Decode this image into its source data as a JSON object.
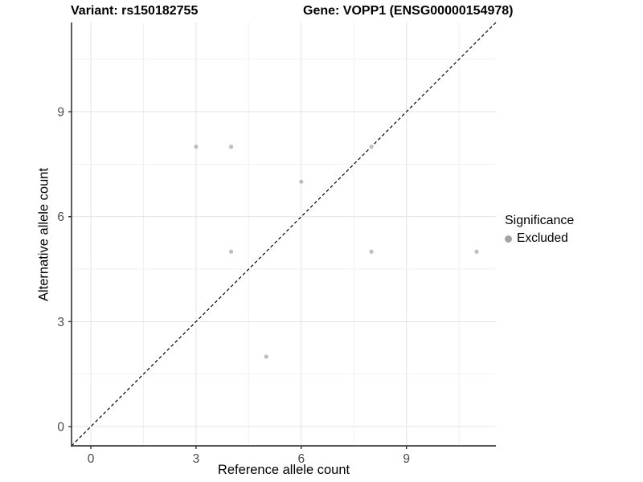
{
  "header": {
    "title_left": "Variant: rs150182755",
    "title_right": "Gene: VOPP1 (ENSG00000154978)"
  },
  "legend": {
    "title": "Significance",
    "items": [
      {
        "label": "Excluded",
        "color": "#a3a3a3"
      }
    ]
  },
  "chart_data": {
    "type": "scatter",
    "title": "Variant: rs150182755   Gene: VOPP1 (ENSG00000154978)",
    "xlabel": "Reference allele count",
    "ylabel": "Alternative allele count",
    "xlim": [
      -0.55,
      11.55
    ],
    "ylim": [
      -0.55,
      11.55
    ],
    "x_ticks": [
      0,
      3,
      6,
      9
    ],
    "y_ticks": [
      0,
      3,
      6,
      9
    ],
    "x_minor_ticks": [
      1.5,
      4.5,
      7.5,
      10.5
    ],
    "y_minor_ticks": [
      1.5,
      4.5,
      7.5,
      10.5
    ],
    "grid": true,
    "legend_position": "right",
    "series": [
      {
        "name": "Excluded",
        "color": "#bebebe",
        "points": [
          [
            3,
            8
          ],
          [
            4,
            8
          ],
          [
            8,
            8
          ],
          [
            6,
            7
          ],
          [
            4,
            5
          ],
          [
            8,
            5
          ],
          [
            11,
            5
          ],
          [
            5,
            2
          ]
        ]
      }
    ],
    "reference_line": {
      "slope": 1,
      "intercept": 0,
      "style": "dashed",
      "color": "#000000"
    }
  },
  "style_colors": {
    "grid_major": "#e3e3e3",
    "grid_minor": "#f1f1f1",
    "axis_line": "#404040",
    "tick_mark": "#333333",
    "tick_label": "#4a4a4a",
    "point": "#bebebe"
  }
}
